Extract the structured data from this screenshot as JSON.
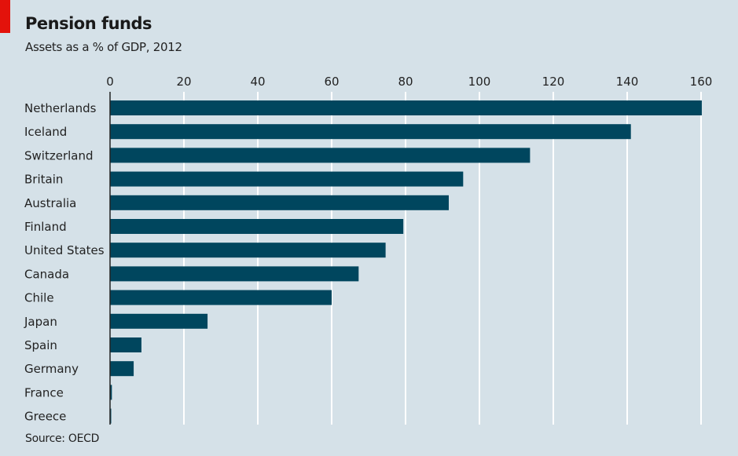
{
  "header": {
    "title": "Pension funds",
    "subtitle": "Assets as a % of GDP, 2012",
    "source": "Source: OECD"
  },
  "colors": {
    "background": "#d5e1e8",
    "bar": "#00465e",
    "accent": "#e3120b",
    "gridline": "#ffffff"
  },
  "chart_data": {
    "type": "bar",
    "orientation": "horizontal",
    "title": "Pension funds",
    "subtitle": "Assets as a % of GDP, 2012",
    "xlabel": "",
    "ylabel": "",
    "xlim": [
      0,
      160
    ],
    "xticks": [
      0,
      20,
      40,
      60,
      80,
      100,
      120,
      140,
      160
    ],
    "xtick_labels": [
      "0",
      "20",
      "40",
      "60",
      "80",
      "100",
      "120",
      "140",
      "160"
    ],
    "axis_position": "top",
    "grid": true,
    "categories": [
      "Netherlands",
      "Iceland",
      "Switzerland",
      "Britain",
      "Australia",
      "Finland",
      "United States",
      "Canada",
      "Chile",
      "Japan",
      "Spain",
      "Germany",
      "France",
      "Greece"
    ],
    "values": [
      160.2,
      141.0,
      113.7,
      95.6,
      91.7,
      79.4,
      74.6,
      67.3,
      60.0,
      26.4,
      8.5,
      6.4,
      0.5,
      0.3
    ],
    "source": "Source: OECD"
  }
}
